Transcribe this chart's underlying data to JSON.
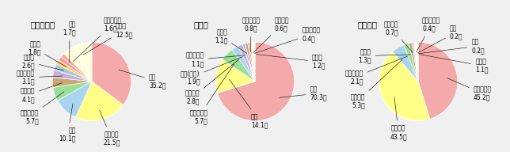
{
  "chart1": {
    "title": "総検挙件数",
    "labels": [
      "中国",
      "ブラジル",
      "韓国",
      "フィリピン",
      "ベトナム",
      "パキスタン",
      "トルコ",
      "ペルー",
      "タイ",
      "コロンビア",
      "その他"
    ],
    "values": [
      35.2,
      21.5,
      10.1,
      5.7,
      4.1,
      3.1,
      2.6,
      1.8,
      1.7,
      1.6,
      12.5
    ],
    "colors": [
      "#F4AAAA",
      "#FFFF88",
      "#AAD4EE",
      "#98E098",
      "#C8A870",
      "#C8B0D8",
      "#A8C4E0",
      "#FFD040",
      "#FF8EC8",
      "#FFAA70",
      "#FFFFE0"
    ],
    "label_positions": [
      [
        1.45,
        0.0,
        "left"
      ],
      [
        0.5,
        -1.45,
        "center"
      ],
      [
        -0.4,
        -1.35,
        "right"
      ],
      [
        -1.35,
        -0.9,
        "right"
      ],
      [
        -1.45,
        -0.35,
        "right"
      ],
      [
        -1.45,
        0.1,
        "right"
      ],
      [
        -1.45,
        0.5,
        "right"
      ],
      [
        -1.3,
        0.85,
        "right"
      ],
      [
        -0.4,
        1.35,
        "right"
      ],
      [
        0.3,
        1.45,
        "left"
      ],
      [
        0.6,
        1.3,
        "left"
      ]
    ]
  },
  "chart2": {
    "title": "侵入盗",
    "labels": [
      "中国",
      "韓国",
      "コロンビア",
      "ブラジル",
      "中国(台湾)",
      "フィリピン",
      "ロシア",
      "グアテマラ",
      "ベトナム",
      "スリランカ",
      "その他"
    ],
    "values": [
      70.3,
      14.1,
      5.7,
      2.8,
      1.9,
      1.1,
      1.1,
      0.8,
      0.6,
      0.4,
      1.2
    ],
    "colors": [
      "#F4AAAA",
      "#FFFF88",
      "#98E098",
      "#AAD4EE",
      "#C8B0D8",
      "#A8C4E0",
      "#C8A870",
      "#FF8EC8",
      "#FFAA70",
      "#B8E8B8",
      "#FFFFE0"
    ],
    "label_positions": [
      [
        1.4,
        -0.3,
        "left"
      ],
      [
        -0.1,
        -1.0,
        "left"
      ],
      [
        -1.2,
        -0.9,
        "right"
      ],
      [
        -1.4,
        -0.4,
        "right"
      ],
      [
        -1.4,
        0.1,
        "right"
      ],
      [
        -1.3,
        0.55,
        "right"
      ],
      [
        -0.7,
        1.15,
        "right"
      ],
      [
        -0.1,
        1.45,
        "center"
      ],
      [
        0.5,
        1.45,
        "left"
      ],
      [
        1.2,
        1.2,
        "left"
      ],
      [
        1.45,
        0.5,
        "left"
      ]
    ]
  },
  "chart3": {
    "title": "自動車盗",
    "labels": [
      "パキスタン",
      "ブラジル",
      "イギリス",
      "スリランカ",
      "ロシア",
      "ベトナム",
      "パラグアイ",
      "中国",
      "韓国",
      "その他"
    ],
    "values": [
      45.2,
      43.5,
      5.3,
      2.1,
      1.3,
      0.7,
      0.4,
      0.2,
      0.2,
      1.1
    ],
    "colors": [
      "#F4AAAA",
      "#FFFF88",
      "#AAD4EE",
      "#98E098",
      "#C8A870",
      "#C8B0D8",
      "#A8C4E0",
      "#FF8EC8",
      "#FFAA70",
      "#FFFFE0"
    ],
    "label_positions": [
      [
        1.4,
        -0.3,
        "left"
      ],
      [
        -0.5,
        -1.3,
        "center"
      ],
      [
        -1.35,
        -0.5,
        "right"
      ],
      [
        -1.4,
        0.1,
        "right"
      ],
      [
        -1.2,
        0.65,
        "right"
      ],
      [
        -0.5,
        1.35,
        "right"
      ],
      [
        0.1,
        1.45,
        "left"
      ],
      [
        0.8,
        1.25,
        "left"
      ],
      [
        1.35,
        0.9,
        "left"
      ],
      [
        1.45,
        0.4,
        "left"
      ]
    ]
  },
  "bg": "#F0F0F0",
  "title_fs": 7.5,
  "label_fs": 5.5
}
